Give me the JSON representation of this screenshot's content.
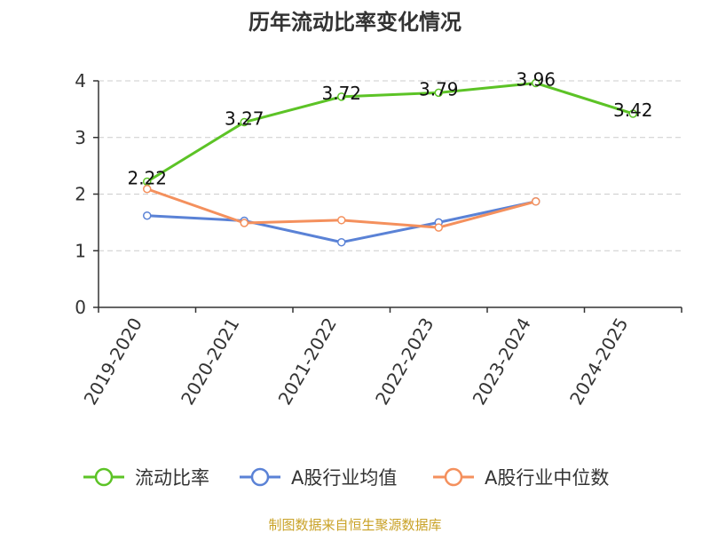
{
  "chart_data": {
    "type": "line",
    "title": "历年流动比率变化情况",
    "categories": [
      "2019-2020",
      "2020-2021",
      "2021-2022",
      "2022-2023",
      "2023-2024",
      "2024-2025"
    ],
    "ylim": [
      0,
      4
    ],
    "yticks": [
      "0",
      "1",
      "2",
      "3",
      "4"
    ],
    "grid": true,
    "legend_position": "bottom",
    "series": [
      {
        "name": "流动比率",
        "color": "#5cc326",
        "values": [
          2.22,
          3.27,
          3.72,
          3.79,
          3.96,
          3.42
        ],
        "labels": [
          "2.22",
          "3.27",
          "3.72",
          "3.79",
          "3.96",
          "3.42"
        ]
      },
      {
        "name": "A股行业均值",
        "color": "#5a82d6",
        "values": [
          1.62,
          1.53,
          1.15,
          1.5,
          1.87,
          null
        ]
      },
      {
        "name": "A股行业中位数",
        "color": "#f4905d",
        "values": [
          2.09,
          1.49,
          1.54,
          1.41,
          1.87,
          null
        ]
      }
    ],
    "source": "制图数据来自恒生聚源数据库"
  }
}
